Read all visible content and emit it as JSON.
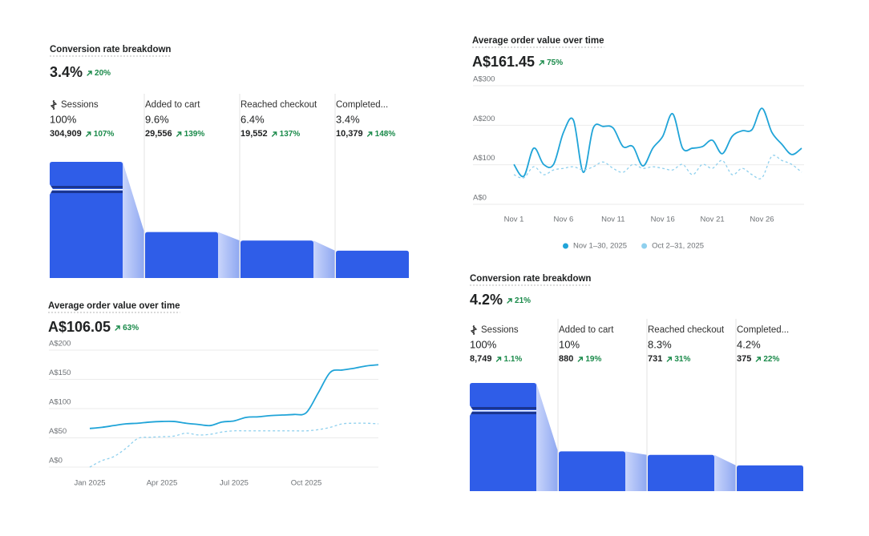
{
  "chart_data": [
    {
      "type": "funnel",
      "title": "Conversion rate breakdown",
      "headline": "3.4%",
      "headline_change": "20%",
      "categories": [
        "Sessions",
        "Added to cart",
        "Reached checkout",
        "Completed..."
      ],
      "values": [
        100,
        9.6,
        6.4,
        3.4
      ],
      "value_labels": [
        "100%",
        "9.6%",
        "6.4%",
        "3.4%"
      ],
      "counts": [
        "304,909",
        "29,556",
        "19,552",
        "10,379"
      ],
      "changes": [
        "107%",
        "139%",
        "137%",
        "148%"
      ],
      "color": "#2f5de8"
    },
    {
      "type": "line",
      "title": "Average order value over time",
      "headline": "A$161.45",
      "headline_change": "75%",
      "categories": [
        "Nov 1",
        null,
        null,
        null,
        null,
        "Nov 6",
        null,
        null,
        null,
        null,
        "Nov 11",
        null,
        null,
        null,
        null,
        "Nov 16",
        null,
        null,
        null,
        null,
        "Nov 21",
        null,
        null,
        null,
        null,
        "Nov 26",
        null,
        null,
        null,
        null
      ],
      "ylim": [
        0,
        300
      ],
      "yticks": [
        {
          "value": 0,
          "label": "A$0"
        },
        {
          "value": 100,
          "label": "A$100"
        },
        {
          "value": 200,
          "label": "A$200"
        },
        {
          "value": 300,
          "label": "A$300"
        }
      ],
      "grid": true,
      "legend": "bottom",
      "series": [
        {
          "name": "Nov 1–30, 2025",
          "color": "#20a4d8",
          "values": [
            101,
            71,
            142,
            101,
            101,
            182,
            213,
            81,
            193,
            197,
            193,
            146,
            146,
            97,
            142,
            172,
            229,
            142,
            142,
            146,
            162,
            128,
            172,
            186,
            189,
            243,
            182,
            152,
            126,
            142
          ]
        },
        {
          "name": "Oct 2–31, 2025",
          "color": "#8fd0ee",
          "dashed": true,
          "values": [
            75,
            67,
            95,
            75,
            87,
            91,
            95,
            87,
            95,
            107,
            91,
            81,
            101,
            91,
            95,
            91,
            87,
            101,
            75,
            101,
            91,
            111,
            75,
            91,
            75,
            67,
            122,
            111,
            101,
            81
          ]
        }
      ]
    },
    {
      "type": "line",
      "title": "Average order value over time",
      "headline": "A$106.05",
      "headline_change": "63%",
      "categories": [
        "Jan 2025",
        null,
        null,
        null,
        null,
        null,
        "Apr 2025",
        null,
        null,
        null,
        null,
        null,
        "Jul 2025",
        null,
        null,
        null,
        null,
        null,
        "Oct 2025",
        null,
        null,
        null,
        null,
        null,
        null
      ],
      "ylim": [
        0,
        200
      ],
      "yticks": [
        {
          "value": 0,
          "label": "A$0"
        },
        {
          "value": 50,
          "label": "A$50"
        },
        {
          "value": 100,
          "label": "A$100"
        },
        {
          "value": 150,
          "label": "A$150"
        },
        {
          "value": 200,
          "label": "A$200"
        }
      ],
      "grid": true,
      "series": [
        {
          "color": "#20a4d8",
          "values": [
            66,
            68,
            71,
            74,
            75,
            77,
            78,
            78,
            75,
            73,
            71,
            77,
            79,
            85,
            86,
            88,
            89,
            90,
            93,
            127,
            162,
            166,
            169,
            173,
            175
          ]
        },
        {
          "color": "#8fd0ee",
          "dashed": true,
          "values": [
            0,
            11,
            18,
            32,
            49,
            51,
            52,
            53,
            58,
            55,
            56,
            60,
            62,
            62,
            62,
            62,
            62,
            62,
            62,
            64,
            68,
            74,
            75,
            75,
            74
          ]
        }
      ]
    },
    {
      "type": "funnel",
      "title": "Conversion rate breakdown",
      "headline": "4.2%",
      "headline_change": "21%",
      "categories": [
        "Sessions",
        "Added to cart",
        "Reached checkout",
        "Completed..."
      ],
      "values": [
        100,
        10,
        8.3,
        4.2
      ],
      "value_labels": [
        "100%",
        "10%",
        "8.3%",
        "4.2%"
      ],
      "counts": [
        "8,749",
        "880",
        "731",
        "375"
      ],
      "changes": [
        "1.1%",
        "19%",
        "31%",
        "22%"
      ],
      "color": "#2f5de8"
    }
  ]
}
